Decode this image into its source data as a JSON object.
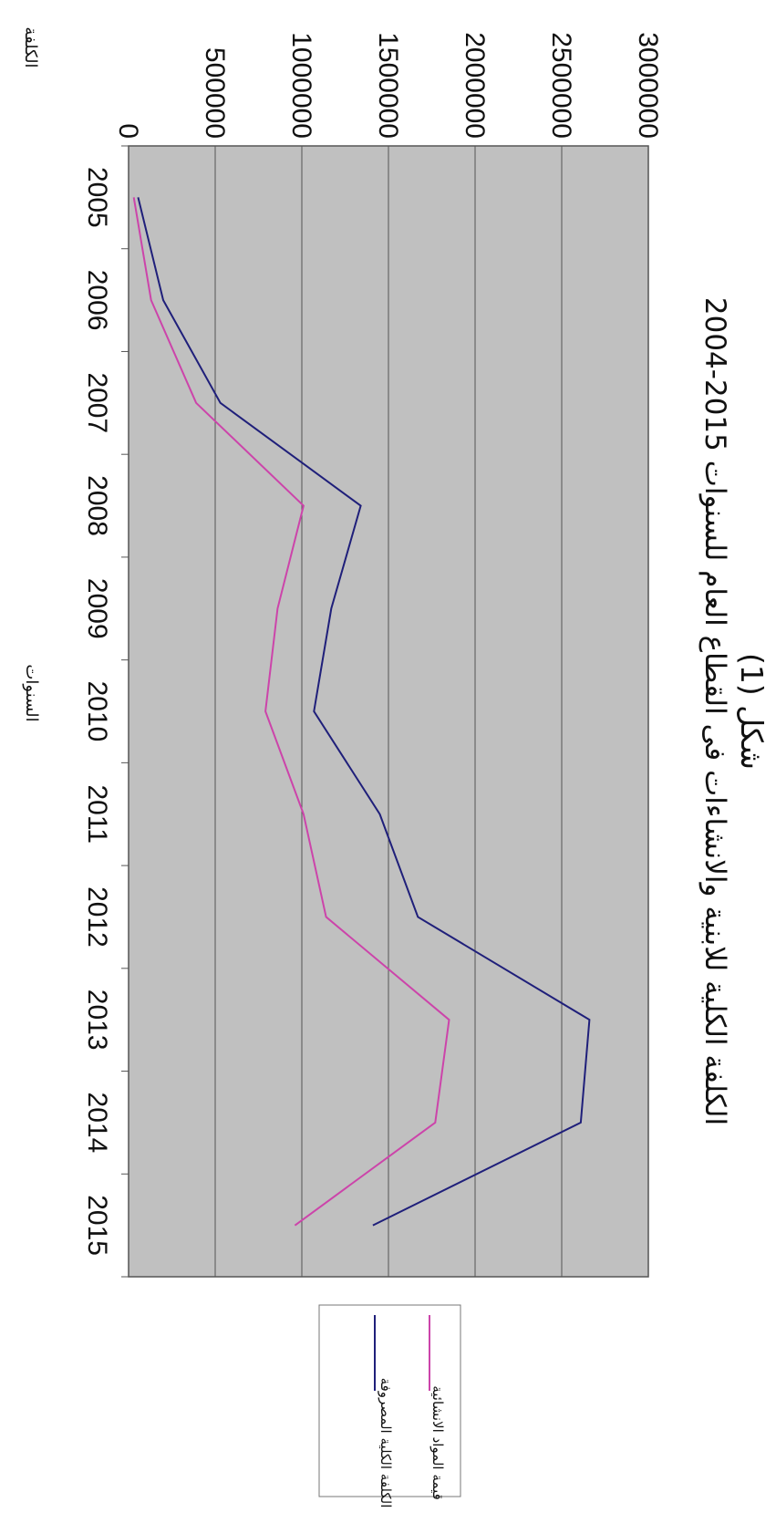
{
  "chart_data": {
    "type": "line",
    "title": "شكل (1)",
    "subtitle": "الكلفة الكلية للابنية والانشاءات فى القطاع العام للسنوات 2015-2004",
    "xlabel": "السنوات",
    "ylabel": "الكلفة",
    "categories": [
      "2005",
      "2006",
      "2007",
      "2008",
      "2009",
      "2010",
      "2011",
      "2012",
      "2013",
      "2014",
      "2015"
    ],
    "ylim": [
      0,
      3000000
    ],
    "y_ticks": [
      "0",
      "500000",
      "1000000",
      "1500000",
      "2000000",
      "2500000",
      "3000000"
    ],
    "grid": true,
    "legend_position": "right",
    "series": [
      {
        "name": "الكلفة الكلية المصروفة",
        "color": "#1f1f7a",
        "values": [
          55000,
          200000,
          530000,
          1340000,
          1170000,
          1070000,
          1450000,
          1670000,
          2660000,
          2610000,
          1410000
        ]
      },
      {
        "name": "قيمة المواد الانشائية",
        "color": "#cc44aa",
        "values": [
          30000,
          130000,
          390000,
          1010000,
          860000,
          790000,
          1010000,
          1140000,
          1850000,
          1770000,
          960000
        ]
      }
    ]
  },
  "colors": {
    "plot_bg": "#c0c0c0",
    "grid": "#555555"
  }
}
